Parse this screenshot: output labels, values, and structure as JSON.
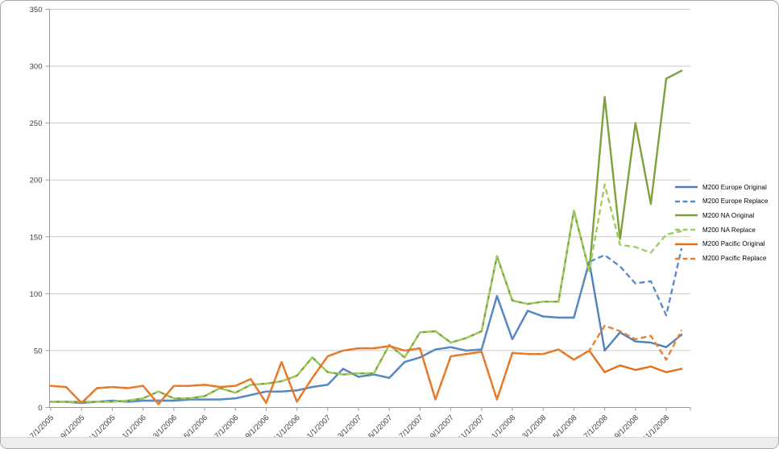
{
  "chart_data": {
    "type": "line",
    "title": "",
    "grid": true,
    "legend_position": "right",
    "y_axis": {
      "min": 0,
      "max": 350,
      "step": 50,
      "tick_labels": [
        "0",
        "50",
        "100",
        "150",
        "200",
        "250",
        "300",
        "350"
      ]
    },
    "x_tick_labels": [
      "7/1/2005",
      "9/1/2005",
      "11/1/2005",
      "1/1/2006",
      "3/1/2006",
      "5/1/2006",
      "7/1/2006",
      "9/1/2006",
      "11/1/2006",
      "1/1/2007",
      "3/1/2007",
      "5/1/2007",
      "7/1/2007",
      "9/1/2007",
      "11/1/2007",
      "1/1/2008",
      "3/1/2008",
      "5/1/2008",
      "7/1/2008",
      "9/1/2008",
      "11/1/2008"
    ],
    "categories": [
      "7/1/2005",
      "8/1/2005",
      "9/1/2005",
      "10/1/2005",
      "11/1/2005",
      "12/1/2005",
      "1/1/2006",
      "2/1/2006",
      "3/1/2006",
      "4/1/2006",
      "5/1/2006",
      "6/1/2006",
      "7/1/2006",
      "8/1/2006",
      "9/1/2006",
      "10/1/2006",
      "11/1/2006",
      "12/1/2006",
      "1/1/2007",
      "2/1/2007",
      "3/1/2007",
      "4/1/2007",
      "5/1/2007",
      "6/1/2007",
      "7/1/2007",
      "8/1/2007",
      "9/1/2007",
      "10/1/2007",
      "11/1/2007",
      "12/1/2007",
      "1/1/2008",
      "2/1/2008",
      "3/1/2008",
      "4/1/2008",
      "5/1/2008",
      "6/1/2008",
      "7/1/2008",
      "8/1/2008",
      "9/1/2008",
      "10/1/2008",
      "11/1/2008",
      "12/1/2008"
    ],
    "series": [
      {
        "name": "M200 Europe Original",
        "color": "#4e81bd",
        "dashed": false,
        "values": [
          5,
          5,
          4,
          5,
          6,
          5,
          6,
          6,
          6,
          7,
          7,
          7,
          8,
          11,
          14,
          14,
          15,
          18,
          20,
          34,
          27,
          29,
          26,
          40,
          44,
          51,
          53,
          50,
          51,
          98,
          60,
          85,
          80,
          79,
          79,
          128,
          50,
          66,
          58,
          57,
          53,
          64
        ]
      },
      {
        "name": "M200 Europe Replace",
        "color": "#5b8dc8",
        "dashed": true,
        "values": [
          5,
          5,
          4,
          5,
          6,
          5,
          6,
          6,
          6,
          7,
          7,
          7,
          8,
          11,
          14,
          14,
          15,
          18,
          20,
          34,
          27,
          29,
          26,
          40,
          44,
          51,
          53,
          50,
          51,
          98,
          60,
          85,
          80,
          79,
          79,
          128,
          134,
          124,
          109,
          111,
          81,
          140
        ]
      },
      {
        "name": "M200 NA Original",
        "color": "#7fa13c",
        "dashed": false,
        "values": [
          5,
          5,
          5,
          5,
          5,
          6,
          8,
          14,
          8,
          8,
          10,
          17,
          13,
          20,
          21,
          23,
          28,
          44,
          31,
          29,
          30,
          30,
          55,
          44,
          66,
          67,
          57,
          61,
          67,
          133,
          94,
          91,
          93,
          93,
          173,
          120,
          273,
          148,
          250,
          179,
          289,
          296
        ]
      },
      {
        "name": "M200 NA Replace",
        "color": "#9dce62",
        "dashed": true,
        "values": [
          5,
          5,
          5,
          5,
          5,
          6,
          8,
          14,
          8,
          8,
          10,
          17,
          13,
          20,
          21,
          23,
          28,
          44,
          31,
          29,
          30,
          30,
          55,
          44,
          66,
          67,
          57,
          61,
          67,
          133,
          94,
          91,
          93,
          93,
          173,
          120,
          196,
          143,
          141,
          136,
          152,
          155
        ]
      },
      {
        "name": "M200 Pacific Original",
        "color": "#e2701b",
        "dashed": false,
        "values": [
          19,
          18,
          4,
          17,
          18,
          17,
          19,
          3,
          19,
          19,
          20,
          18,
          19,
          25,
          4,
          40,
          5,
          26,
          45,
          50,
          52,
          52,
          54,
          50,
          52,
          7,
          45,
          47,
          49,
          7,
          48,
          47,
          47,
          51,
          42,
          50,
          31,
          37,
          33,
          36,
          31,
          34
        ]
      },
      {
        "name": "M200 Pacific Replace",
        "color": "#eb8032",
        "dashed": true,
        "values": [
          19,
          18,
          4,
          17,
          18,
          17,
          19,
          3,
          19,
          19,
          20,
          18,
          19,
          25,
          4,
          40,
          5,
          26,
          45,
          50,
          52,
          52,
          54,
          50,
          52,
          7,
          45,
          47,
          49,
          7,
          48,
          47,
          47,
          51,
          42,
          50,
          72,
          67,
          60,
          63,
          42,
          68
        ]
      }
    ],
    "colors": {
      "gridline": "#c9c9c9",
      "axis": "#9a9a9a",
      "label_text": "#404040"
    }
  }
}
